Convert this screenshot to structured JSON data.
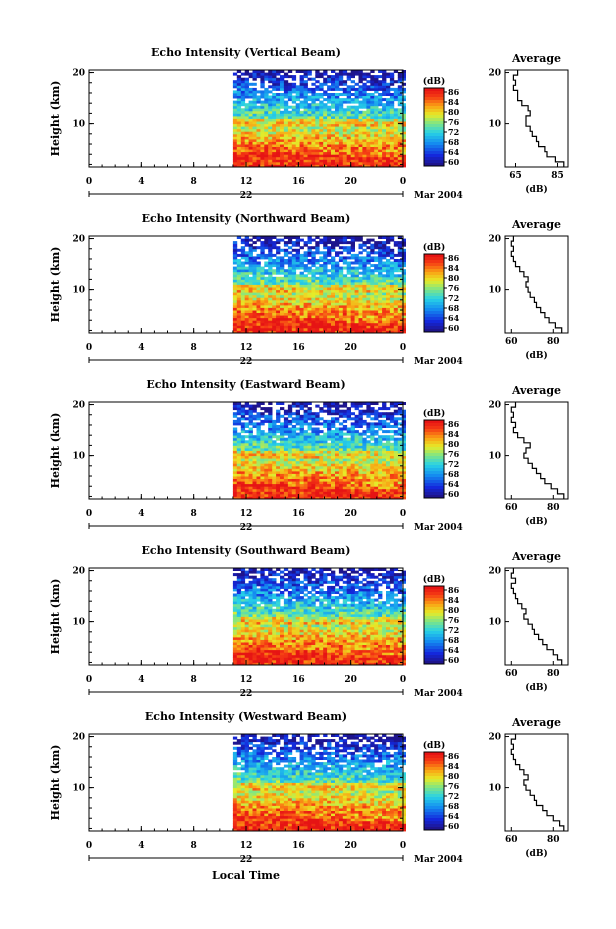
{
  "figure": {
    "xlabel": "Local Time",
    "date_label": "Mar 2004",
    "day_label": "22",
    "colorbar_unit": "(dB)",
    "colorbar_ticks": [
      "86",
      "84",
      "80",
      "76",
      "72",
      "68",
      "64",
      "60"
    ],
    "avg_title": "Average",
    "avg_xunit": "(dB)"
  },
  "chart_data": [
    {
      "type": "heatmap",
      "title": "Echo Intensity (Vertical Beam)",
      "xlabel": "Local Time",
      "ylabel": "Height (km)",
      "x_ticks": [
        "0",
        "4",
        "8",
        "12",
        "16",
        "20",
        "0"
      ],
      "y_ticks": [
        "20",
        "10"
      ],
      "xlim": [
        0,
        24
      ],
      "ylim": [
        1.5,
        20.5
      ],
      "data_start_hour": 11,
      "colorbar": {
        "label": "(dB)",
        "ticks": [
          "86",
          "84",
          "80",
          "76",
          "72",
          "68",
          "64",
          "60"
        ]
      },
      "average_profile": {
        "title": "Average",
        "xlabel": "(dB)",
        "x_ticks": [
          "65",
          "85"
        ],
        "xlim": [
          60,
          90
        ],
        "y_ticks": [
          "20",
          "10"
        ],
        "ylim": [
          1.5,
          20.5
        ],
        "height_km": [
          2,
          3,
          4,
          5,
          6,
          7,
          8,
          9,
          10,
          11,
          12,
          13,
          14,
          15,
          16,
          17,
          18,
          19,
          20
        ],
        "values_db": [
          88,
          84,
          80,
          79,
          76,
          75,
          73,
          72,
          70,
          70,
          72,
          71,
          68,
          66,
          66,
          64,
          65,
          64,
          66
        ]
      }
    },
    {
      "type": "heatmap",
      "title": "Echo Intensity (Northward Beam)",
      "xlabel": "Local Time",
      "ylabel": "Height (km)",
      "x_ticks": [
        "0",
        "4",
        "8",
        "12",
        "16",
        "20",
        "0"
      ],
      "y_ticks": [
        "20",
        "10"
      ],
      "xlim": [
        0,
        24
      ],
      "ylim": [
        1.5,
        20.5
      ],
      "data_start_hour": 11,
      "colorbar": {
        "label": "(dB)",
        "ticks": [
          "86",
          "84",
          "80",
          "76",
          "72",
          "68",
          "64",
          "60"
        ]
      },
      "average_profile": {
        "title": "Average",
        "xlabel": "(dB)",
        "x_ticks": [
          "60",
          "80"
        ],
        "xlim": [
          57,
          87
        ],
        "y_ticks": [
          "20",
          "10"
        ],
        "ylim": [
          1.5,
          20.5
        ],
        "height_km": [
          2,
          3,
          4,
          5,
          6,
          7,
          8,
          9,
          10,
          11,
          12,
          13,
          14,
          15,
          16,
          17,
          18,
          19,
          20
        ],
        "values_db": [
          84,
          81,
          78,
          76,
          74,
          72,
          71,
          69,
          68,
          67,
          68,
          66,
          64,
          62,
          61,
          60,
          61,
          60,
          61
        ]
      }
    },
    {
      "type": "heatmap",
      "title": "Echo Intensity (Eastward Beam)",
      "xlabel": "Local Time",
      "ylabel": "Height (km)",
      "x_ticks": [
        "0",
        "4",
        "8",
        "12",
        "16",
        "20",
        "0"
      ],
      "y_ticks": [
        "20",
        "10"
      ],
      "xlim": [
        0,
        24
      ],
      "ylim": [
        1.5,
        20.5
      ],
      "data_start_hour": 11,
      "colorbar": {
        "label": "(dB)",
        "ticks": [
          "86",
          "84",
          "80",
          "76",
          "72",
          "68",
          "64",
          "60"
        ]
      },
      "average_profile": {
        "title": "Average",
        "xlabel": "(dB)",
        "x_ticks": [
          "60",
          "80"
        ],
        "xlim": [
          57,
          87
        ],
        "y_ticks": [
          "20",
          "10"
        ],
        "ylim": [
          1.5,
          20.5
        ],
        "height_km": [
          2,
          3,
          4,
          5,
          6,
          7,
          8,
          9,
          10,
          11,
          12,
          13,
          14,
          15,
          16,
          17,
          18,
          19,
          20
        ],
        "values_db": [
          85,
          82,
          79,
          76,
          74,
          72,
          70,
          68,
          66,
          67,
          69,
          66,
          63,
          61,
          62,
          60,
          61,
          60,
          62
        ]
      }
    },
    {
      "type": "heatmap",
      "title": "Echo Intensity (Southward Beam)",
      "xlabel": "Local Time",
      "ylabel": "Height (km)",
      "x_ticks": [
        "0",
        "4",
        "8",
        "12",
        "16",
        "20",
        "0"
      ],
      "y_ticks": [
        "20",
        "10"
      ],
      "xlim": [
        0,
        24
      ],
      "ylim": [
        1.5,
        20.5
      ],
      "data_start_hour": 11,
      "colorbar": {
        "label": "(dB)",
        "ticks": [
          "86",
          "84",
          "80",
          "76",
          "72",
          "68",
          "64",
          "60"
        ]
      },
      "average_profile": {
        "title": "Average",
        "xlabel": "(dB)",
        "x_ticks": [
          "60",
          "80"
        ],
        "xlim": [
          57,
          87
        ],
        "y_ticks": [
          "20",
          "10"
        ],
        "ylim": [
          1.5,
          20.5
        ],
        "height_km": [
          2,
          3,
          4,
          5,
          6,
          7,
          8,
          9,
          10,
          11,
          12,
          13,
          14,
          15,
          16,
          17,
          18,
          19,
          20
        ],
        "values_db": [
          84,
          82,
          80,
          77,
          75,
          73,
          71,
          70,
          68,
          66,
          67,
          65,
          63,
          62,
          61,
          60,
          62,
          60,
          61
        ]
      }
    },
    {
      "type": "heatmap",
      "title": "Echo Intensity (Westward Beam)",
      "xlabel": "Local Time",
      "ylabel": "Height (km)",
      "x_ticks": [
        "0",
        "4",
        "8",
        "12",
        "16",
        "20",
        "0"
      ],
      "y_ticks": [
        "20",
        "10"
      ],
      "xlim": [
        0,
        24
      ],
      "ylim": [
        1.5,
        20.5
      ],
      "data_start_hour": 11,
      "colorbar": {
        "label": "(dB)",
        "ticks": [
          "86",
          "84",
          "80",
          "76",
          "72",
          "68",
          "64",
          "60"
        ]
      },
      "average_profile": {
        "title": "Average",
        "xlabel": "(dB)",
        "x_ticks": [
          "60",
          "80"
        ],
        "xlim": [
          57,
          87
        ],
        "y_ticks": [
          "20",
          "10"
        ],
        "ylim": [
          1.5,
          20.5
        ],
        "height_km": [
          2,
          3,
          4,
          5,
          6,
          7,
          8,
          9,
          10,
          11,
          12,
          13,
          14,
          15,
          16,
          17,
          18,
          19,
          20
        ],
        "values_db": [
          85,
          83,
          80,
          77,
          75,
          72,
          71,
          69,
          67,
          66,
          68,
          66,
          64,
          62,
          61,
          60,
          61,
          60,
          62
        ]
      }
    }
  ]
}
